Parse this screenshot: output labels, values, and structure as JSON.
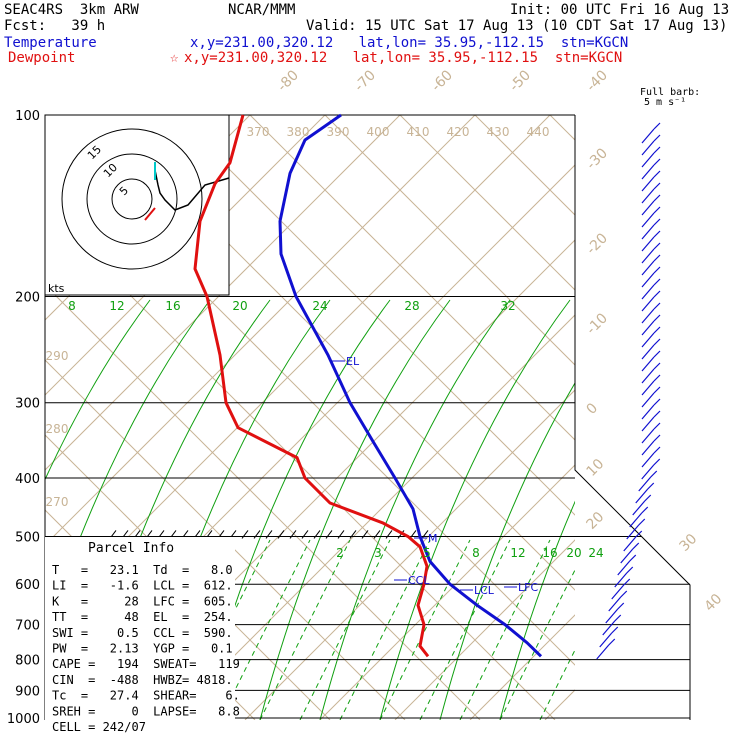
{
  "header": {
    "model": "SEAC4RS  3km ARW",
    "center": "NCAR/MMM",
    "init": "Init: 00 UTC Fri 16 Aug 13",
    "fcst_label": "Fcst:   39 h",
    "valid": "Valid: 15 UTC Sat 17 Aug 13 (10 CDT Sat 17 Aug 13)",
    "temperature_label": "Temperature",
    "temperature_loc": "x,y=231.00,320.12   lat,lon= 35.95,-112.15  stn=KGCN",
    "dewpoint_label": "Dewpoint",
    "dewpoint_loc": "x,y=231.00,320.12   lat,lon= 35.95,-112.15  stn=KGCN",
    "dewpoint_star": "☆"
  },
  "barb_legend": [
    "Full barb:",
    "5 m s⁻¹"
  ],
  "colors": {
    "temperature": "#1010d0",
    "dewpoint": "#e01010",
    "isotherm": "#c8b496",
    "dry_adiabat": "#c8b496",
    "moist_adiabat": "#10a010",
    "mixing_ratio": "#10a010",
    "isobar": "#000000"
  },
  "chart_data": {
    "type": "line",
    "title": "",
    "pressure_levels": [
      100,
      200,
      300,
      400,
      500,
      600,
      700,
      800,
      900,
      1000
    ],
    "ylim": [
      1000,
      100
    ],
    "yscale": "log",
    "series": [
      {
        "name": "Temperature",
        "points": [
          {
            "p": 100,
            "x": 341
          },
          {
            "p": 110,
            "x": 305
          },
          {
            "p": 125,
            "x": 290
          },
          {
            "p": 150,
            "x": 280
          },
          {
            "p": 170,
            "x": 281
          },
          {
            "p": 200,
            "x": 296
          },
          {
            "p": 250,
            "x": 328
          },
          {
            "p": 300,
            "x": 350
          },
          {
            "p": 350,
            "x": 374
          },
          {
            "p": 400,
            "x": 395
          },
          {
            "p": 450,
            "x": 413
          },
          {
            "p": 500,
            "x": 420
          },
          {
            "p": 550,
            "x": 430
          },
          {
            "p": 600,
            "x": 450
          },
          {
            "p": 650,
            "x": 477
          },
          {
            "p": 700,
            "x": 505
          },
          {
            "p": 750,
            "x": 527
          },
          {
            "p": 790,
            "x": 541
          }
        ]
      },
      {
        "name": "Dewpoint",
        "points": [
          {
            "p": 100,
            "x": 243
          },
          {
            "p": 120,
            "x": 230
          },
          {
            "p": 130,
            "x": 215
          },
          {
            "p": 150,
            "x": 200
          },
          {
            "p": 180,
            "x": 195
          },
          {
            "p": 200,
            "x": 207
          },
          {
            "p": 250,
            "x": 220
          },
          {
            "p": 300,
            "x": 226
          },
          {
            "p": 330,
            "x": 238
          },
          {
            "p": 370,
            "x": 297
          },
          {
            "p": 400,
            "x": 305
          },
          {
            "p": 440,
            "x": 330
          },
          {
            "p": 475,
            "x": 383
          },
          {
            "p": 500,
            "x": 408
          },
          {
            "p": 520,
            "x": 420
          },
          {
            "p": 560,
            "x": 427
          },
          {
            "p": 600,
            "x": 424
          },
          {
            "p": 650,
            "x": 418
          },
          {
            "p": 700,
            "x": 424
          },
          {
            "p": 760,
            "x": 420
          },
          {
            "p": 790,
            "x": 428
          }
        ]
      }
    ],
    "isotherm_labels": [
      "-80",
      "-70",
      "-60",
      "-50",
      "-40",
      "-30",
      "-20",
      "-10",
      "0",
      "10",
      "20",
      "30",
      "40"
    ],
    "theta_labels": [
      "370",
      "380",
      "390",
      "400",
      "410",
      "420",
      "430",
      "440"
    ],
    "dry_adiabat_labels": [
      "290",
      "280",
      "270"
    ],
    "mixing_ratio_labels_upper": [
      "8",
      "12",
      "16",
      "20",
      "24",
      "28",
      "32"
    ],
    "mixing_ratio_labels_lower": [
      "2",
      "3",
      "5",
      "8",
      "12",
      "16",
      "20",
      "24"
    ],
    "markers": [
      "EL",
      "CCL",
      "LCL",
      "LFC",
      "M"
    ],
    "hodograph": {
      "unit": "kts",
      "ring_labels": [
        "5",
        "10",
        "15"
      ]
    },
    "parcel_info": {
      "title": "Parcel Info",
      "rows": [
        "T   =   23.1  Td  =   8.0",
        "LI  =   -1.6  LCL =  612.",
        "K   =     28  LFC =  605.",
        "TT  =     48  EL  =  254.",
        "SWI =    0.5  CCL =  590.",
        "PW  =   2.13  YGP =   0.1",
        "CAPE =   194  SWEAT=   119",
        "CIN  =  -488  HWBZ= 4818.",
        "Tc  =   27.4  SHEAR=    6.",
        "SREH =     0  LAPSE=   8.8",
        "CELL = 242/07"
      ]
    }
  }
}
